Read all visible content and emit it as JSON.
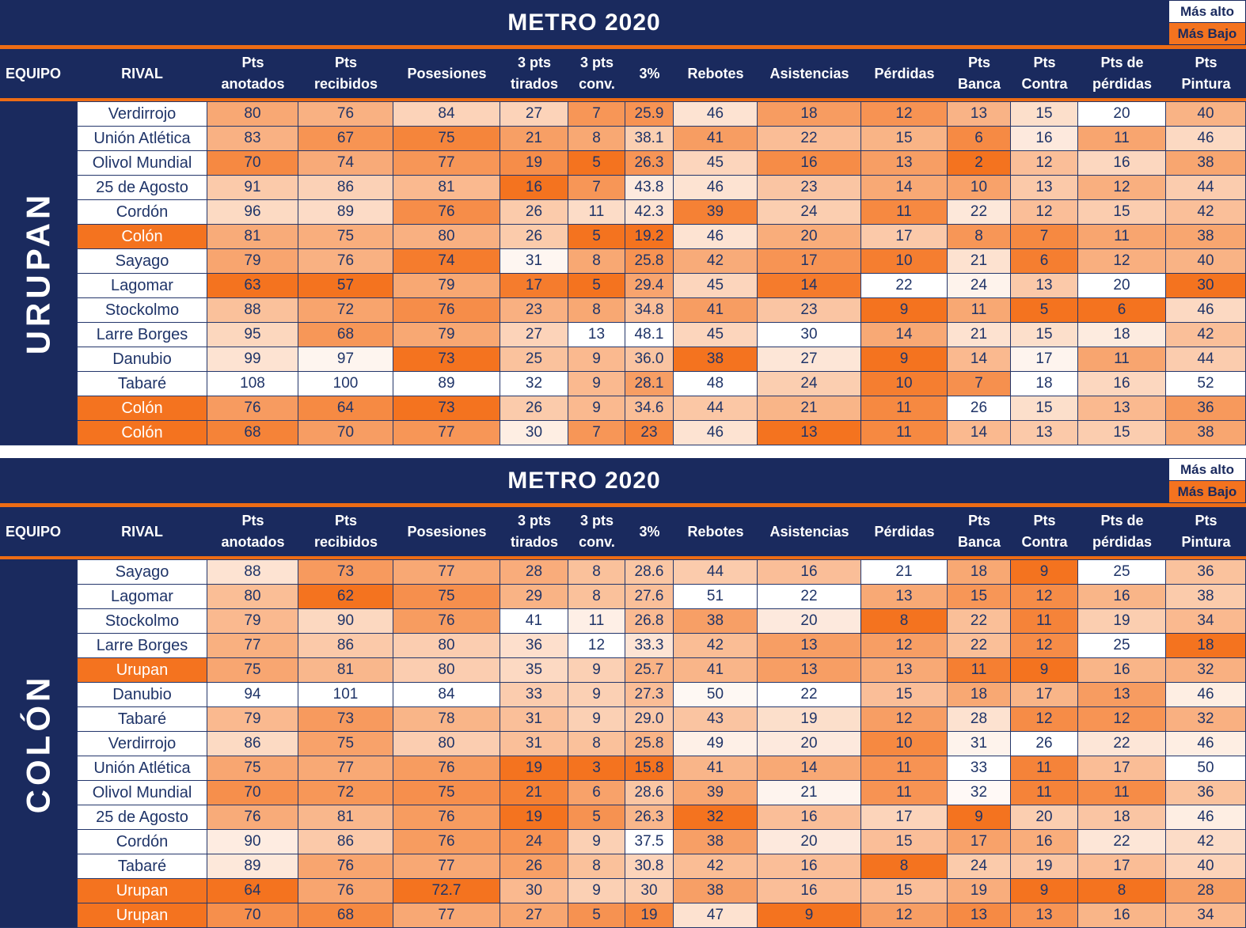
{
  "colors": {
    "navy_band": "#1A2A5E",
    "orange_low": "#F4731F",
    "white_high": "#FFFFFF",
    "text_navy": "#1F3468",
    "divider_orange": "#ED6C15"
  },
  "legend": {
    "high": "Más alto",
    "low": "Más Bajo"
  },
  "columns": [
    {
      "id": "equipo",
      "lines": [
        "EQUIPO"
      ]
    },
    {
      "id": "rival",
      "lines": [
        "RIVAL"
      ]
    },
    {
      "id": "pts-anotados",
      "lines": [
        "Pts",
        "anotados"
      ]
    },
    {
      "id": "pts-recibidos",
      "lines": [
        "Pts",
        "recibidos"
      ]
    },
    {
      "id": "posesiones",
      "lines": [
        "Posesiones"
      ]
    },
    {
      "id": "tres-pts-tirados",
      "lines": [
        "3 pts",
        "tirados"
      ]
    },
    {
      "id": "tres-pts-conv",
      "lines": [
        "3 pts",
        "conv."
      ]
    },
    {
      "id": "tres-pct",
      "lines": [
        "3%"
      ]
    },
    {
      "id": "rebotes",
      "lines": [
        "Rebotes"
      ]
    },
    {
      "id": "asistencias",
      "lines": [
        "Asistencias"
      ]
    },
    {
      "id": "perdidas",
      "lines": [
        "Pérdidas"
      ]
    },
    {
      "id": "pts-banca",
      "lines": [
        "Pts",
        "Banca"
      ]
    },
    {
      "id": "pts-contra",
      "lines": [
        "Pts",
        "Contra"
      ]
    },
    {
      "id": "pts-de-perdidas",
      "lines": [
        "Pts de",
        "pérdidas"
      ]
    },
    {
      "id": "pts-pintura",
      "lines": [
        "Pts",
        "Pintura"
      ]
    }
  ],
  "tables": [
    {
      "title": "METRO 2020",
      "team": "URUPAN",
      "rows": [
        {
          "rival": "Verdirrojo",
          "highlight": false,
          "values": [
            "80",
            "76",
            "84",
            "27",
            "7",
            "25.9",
            "46",
            "18",
            "12",
            "13",
            "15",
            "20",
            "40"
          ]
        },
        {
          "rival": "Unión Atlética",
          "highlight": false,
          "values": [
            "83",
            "67",
            "75",
            "21",
            "8",
            "38.1",
            "41",
            "22",
            "15",
            "6",
            "16",
            "11",
            "46"
          ]
        },
        {
          "rival": "Olivol Mundial",
          "highlight": false,
          "values": [
            "70",
            "74",
            "77",
            "19",
            "5",
            "26.3",
            "45",
            "16",
            "13",
            "2",
            "12",
            "16",
            "38"
          ]
        },
        {
          "rival": "25 de Agosto",
          "highlight": false,
          "values": [
            "91",
            "86",
            "81",
            "16",
            "7",
            "43.8",
            "46",
            "23",
            "14",
            "10",
            "13",
            "12",
            "44"
          ]
        },
        {
          "rival": "Cordón",
          "highlight": false,
          "values": [
            "96",
            "89",
            "76",
            "26",
            "11",
            "42.3",
            "39",
            "24",
            "11",
            "22",
            "12",
            "15",
            "42"
          ]
        },
        {
          "rival": "Colón",
          "highlight": true,
          "values": [
            "81",
            "75",
            "80",
            "26",
            "5",
            "19.2",
            "46",
            "20",
            "17",
            "8",
            "7",
            "11",
            "38"
          ]
        },
        {
          "rival": "Sayago",
          "highlight": false,
          "values": [
            "79",
            "76",
            "74",
            "31",
            "8",
            "25.8",
            "42",
            "17",
            "10",
            "21",
            "6",
            "12",
            "40"
          ]
        },
        {
          "rival": "Lagomar",
          "highlight": false,
          "values": [
            "63",
            "57",
            "79",
            "17",
            "5",
            "29.4",
            "45",
            "14",
            "22",
            "24",
            "13",
            "20",
            "30"
          ]
        },
        {
          "rival": "Stockolmo",
          "highlight": false,
          "values": [
            "88",
            "72",
            "76",
            "23",
            "8",
            "34.8",
            "41",
            "23",
            "9",
            "11",
            "5",
            "6",
            "46"
          ]
        },
        {
          "rival": "Larre Borges",
          "highlight": false,
          "values": [
            "95",
            "68",
            "79",
            "27",
            "13",
            "48.1",
            "45",
            "30",
            "14",
            "21",
            "15",
            "18",
            "42"
          ]
        },
        {
          "rival": "Danubio",
          "highlight": false,
          "values": [
            "99",
            "97",
            "73",
            "25",
            "9",
            "36.0",
            "38",
            "27",
            "9",
            "14",
            "17",
            "11",
            "44"
          ]
        },
        {
          "rival": "Tabaré",
          "highlight": false,
          "values": [
            "108",
            "100",
            "89",
            "32",
            "9",
            "28.1",
            "48",
            "24",
            "10",
            "7",
            "18",
            "16",
            "52"
          ]
        },
        {
          "rival": "Colón",
          "highlight": true,
          "values": [
            "76",
            "64",
            "73",
            "26",
            "9",
            "34.6",
            "44",
            "21",
            "11",
            "26",
            "15",
            "13",
            "36"
          ]
        },
        {
          "rival": "Colón",
          "highlight": true,
          "values": [
            "68",
            "70",
            "77",
            "30",
            "7",
            "23",
            "46",
            "13",
            "11",
            "14",
            "13",
            "15",
            "38"
          ]
        }
      ]
    },
    {
      "title": "METRO 2020",
      "team": "COLÓN",
      "rows": [
        {
          "rival": "Sayago",
          "highlight": false,
          "values": [
            "88",
            "73",
            "77",
            "28",
            "8",
            "28.6",
            "44",
            "16",
            "21",
            "18",
            "9",
            "25",
            "36"
          ]
        },
        {
          "rival": "Lagomar",
          "highlight": false,
          "values": [
            "80",
            "62",
            "75",
            "29",
            "8",
            "27.6",
            "51",
            "22",
            "13",
            "15",
            "12",
            "16",
            "38"
          ]
        },
        {
          "rival": "Stockolmo",
          "highlight": false,
          "values": [
            "79",
            "90",
            "76",
            "41",
            "11",
            "26.8",
            "38",
            "20",
            "8",
            "22",
            "11",
            "19",
            "34"
          ]
        },
        {
          "rival": "Larre Borges",
          "highlight": false,
          "values": [
            "77",
            "86",
            "80",
            "36",
            "12",
            "33.3",
            "42",
            "13",
            "12",
            "22",
            "12",
            "25",
            "18"
          ]
        },
        {
          "rival": "Urupan",
          "highlight": true,
          "values": [
            "75",
            "81",
            "80",
            "35",
            "9",
            "25.7",
            "41",
            "13",
            "13",
            "11",
            "9",
            "16",
            "32"
          ]
        },
        {
          "rival": "Danubio",
          "highlight": false,
          "values": [
            "94",
            "101",
            "84",
            "33",
            "9",
            "27.3",
            "50",
            "22",
            "15",
            "18",
            "17",
            "13",
            "46"
          ]
        },
        {
          "rival": "Tabaré",
          "highlight": false,
          "values": [
            "79",
            "73",
            "78",
            "31",
            "9",
            "29.0",
            "43",
            "19",
            "12",
            "28",
            "12",
            "12",
            "32"
          ]
        },
        {
          "rival": "Verdirrojo",
          "highlight": false,
          "values": [
            "86",
            "75",
            "80",
            "31",
            "8",
            "25.8",
            "49",
            "20",
            "10",
            "31",
            "26",
            "22",
            "46"
          ]
        },
        {
          "rival": "Unión Atlética",
          "highlight": false,
          "values": [
            "75",
            "77",
            "76",
            "19",
            "3",
            "15.8",
            "41",
            "14",
            "11",
            "33",
            "11",
            "17",
            "50"
          ]
        },
        {
          "rival": "Olivol Mundial",
          "highlight": false,
          "values": [
            "70",
            "72",
            "75",
            "21",
            "6",
            "28.6",
            "39",
            "21",
            "11",
            "32",
            "11",
            "11",
            "36"
          ]
        },
        {
          "rival": "25 de Agosto",
          "highlight": false,
          "values": [
            "76",
            "81",
            "76",
            "19",
            "5",
            "26.3",
            "32",
            "16",
            "17",
            "9",
            "20",
            "18",
            "46"
          ]
        },
        {
          "rival": "Cordón",
          "highlight": false,
          "values": [
            "90",
            "86",
            "76",
            "24",
            "9",
            "37.5",
            "38",
            "20",
            "15",
            "17",
            "16",
            "22",
            "42"
          ]
        },
        {
          "rival": "Tabaré",
          "highlight": false,
          "values": [
            "89",
            "76",
            "77",
            "26",
            "8",
            "30.8",
            "42",
            "16",
            "8",
            "24",
            "19",
            "17",
            "40"
          ]
        },
        {
          "rival": "Urupan",
          "highlight": true,
          "values": [
            "64",
            "76",
            "72.7",
            "30",
            "9",
            "30",
            "38",
            "16",
            "15",
            "19",
            "9",
            "8",
            "28"
          ]
        },
        {
          "rival": "Urupan",
          "highlight": true,
          "values": [
            "70",
            "68",
            "77",
            "27",
            "5",
            "19",
            "47",
            "9",
            "12",
            "13",
            "13",
            "16",
            "34"
          ]
        }
      ]
    }
  ]
}
